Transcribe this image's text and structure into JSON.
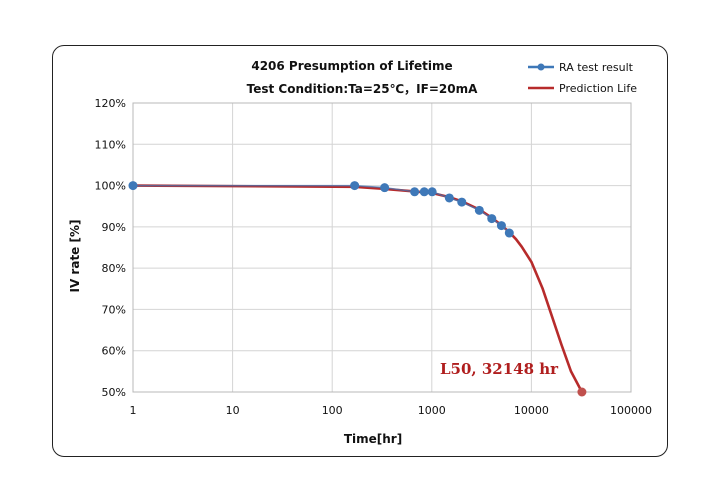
{
  "chart_data": {
    "type": "scatter",
    "title": "4206 Presumption of  Lifetime",
    "subtitle": "Test  Condition:Ta=25℃，IF=20mA",
    "xlabel": "Time[hr]",
    "ylabel": "IV rate [%]",
    "x_scale": "log",
    "xlim": [
      1,
      100000
    ],
    "ylim": [
      50,
      120
    ],
    "x_ticks": [
      1,
      10,
      100,
      1000,
      10000,
      100000
    ],
    "x_tick_labels": [
      "1",
      "10",
      "100",
      "1000",
      "10000",
      "100000"
    ],
    "y_ticks": [
      50,
      60,
      70,
      80,
      90,
      100,
      110,
      120
    ],
    "y_tick_labels": [
      "50%",
      "60%",
      "70%",
      "80%",
      "90%",
      "100%",
      "110%",
      "120%"
    ],
    "grid": true,
    "legend_position": "top-right",
    "series": [
      {
        "name": "RA test result",
        "kind": "line-markers",
        "color": "#3e78b8",
        "x": [
          1,
          168,
          336,
          672,
          840,
          1008,
          1500,
          2000,
          3000,
          4000,
          5000,
          6000
        ],
        "y": [
          100,
          100,
          99.5,
          98.5,
          98.5,
          98.5,
          97,
          96,
          94,
          92,
          90.3,
          88.5
        ]
      },
      {
        "name": "Prediction Life",
        "kind": "line",
        "color": "#b72b2b",
        "x": [
          1,
          168,
          336,
          672,
          1008,
          1500,
          2000,
          3000,
          4000,
          5000,
          6000,
          7000,
          8000,
          10000,
          13000,
          16000,
          20000,
          25000,
          32148
        ],
        "y": [
          100,
          99.7,
          99.2,
          98.6,
          98.2,
          97.2,
          96.2,
          94.2,
          92.2,
          90.4,
          88.7,
          87,
          85.2,
          81.5,
          75,
          68.5,
          61.5,
          55,
          50
        ]
      }
    ],
    "end_point": {
      "x": 32148,
      "y": 50,
      "color": "#c0504d"
    },
    "annotation": {
      "text": "L50, 32148  hr",
      "x": 32148,
      "y": 50
    }
  }
}
